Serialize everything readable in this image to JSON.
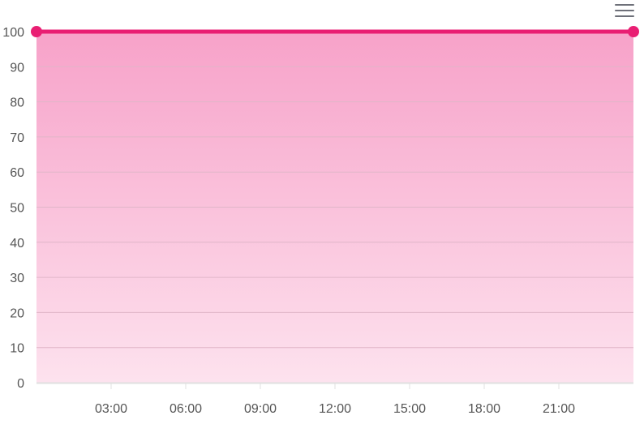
{
  "toolbar": {
    "menu_icon": "hamburger-menu-icon",
    "menu_color": "#6e7079"
  },
  "colors": {
    "line": "#e91e73",
    "area_top": "#f7a2c9",
    "area_bottom": "#fde2ee",
    "grid": "#e0b6c8",
    "axis": "#e0e0e0",
    "tick_text": "#555555"
  },
  "chart_data": {
    "type": "area",
    "x_axis_type": "time",
    "x_range": [
      "00:00",
      "24:00"
    ],
    "x_tick_labels": [
      "03:00",
      "06:00",
      "09:00",
      "12:00",
      "15:00",
      "18:00",
      "21:00"
    ],
    "y_tick_labels": [
      "0",
      "10",
      "20",
      "30",
      "40",
      "50",
      "60",
      "70",
      "80",
      "90",
      "100"
    ],
    "ylim": [
      0,
      100
    ],
    "grid": true,
    "markers_shown": "endpoints",
    "series": [
      {
        "points": [
          {
            "x": "00:00",
            "y": 100
          },
          {
            "x": "24:00",
            "y": 100
          }
        ]
      }
    ]
  }
}
